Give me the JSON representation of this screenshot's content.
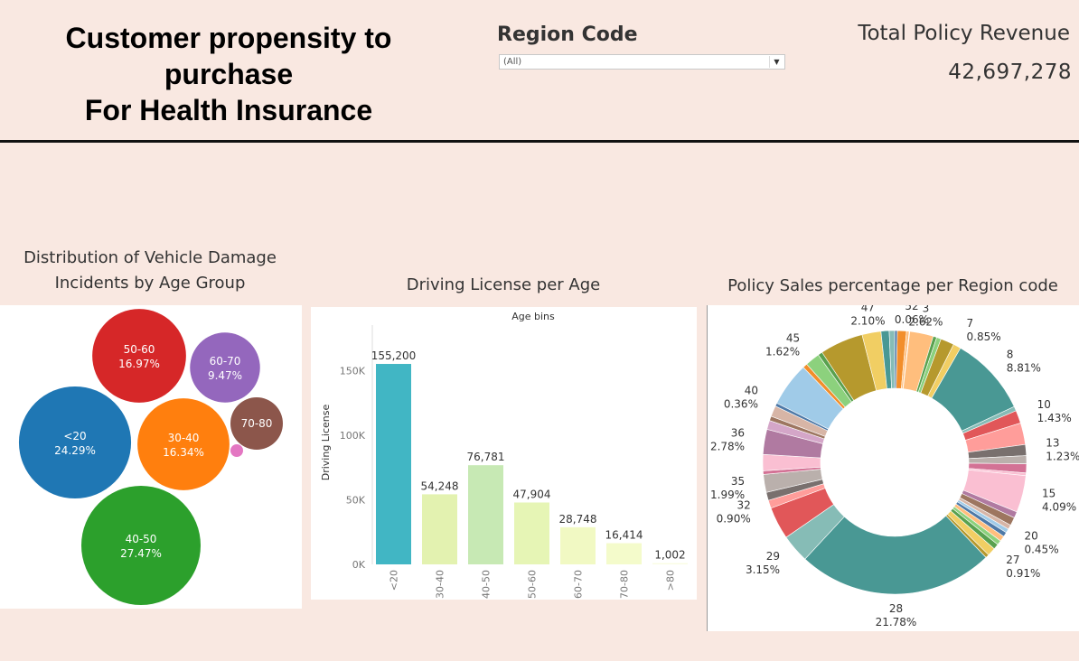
{
  "header": {
    "title_lines": [
      "Customer propensity to",
      "purchase",
      "For Health Insurance"
    ],
    "filter": {
      "label": "Region Code",
      "selected": "(All)"
    },
    "kpi": {
      "label": "Total Policy Revenue",
      "value": "42,697,278"
    }
  },
  "icons": {
    "dropdown": "chevron-down-icon"
  },
  "chart_data": [
    {
      "type": "bubble",
      "title": "Distribution of Vehicle Damage Incidents by Age Group",
      "title_lines": [
        "Distribution of Vehicle Damage",
        "Incidents by Age Group"
      ],
      "items": [
        {
          "label": "<20",
          "value": "24.29%",
          "pct": 24.29,
          "color": "#1f77b4"
        },
        {
          "label": "50-60",
          "value": "16.97%",
          "pct": 16.97,
          "color": "#d62728"
        },
        {
          "label": "60-70",
          "value": "9.47%",
          "pct": 9.47,
          "color": "#9467bd"
        },
        {
          "label": "30-40",
          "value": "16.34%",
          "pct": 16.34,
          "color": "#ff7f0e"
        },
        {
          "label": "70-80",
          "value": "",
          "pct": 5.3,
          "color": "#8c564b"
        },
        {
          "label": "40-50",
          "value": "27.47%",
          "pct": 27.47,
          "color": "#2ca02c"
        },
        {
          "label": "",
          "value": "",
          "pct": 0.2,
          "color": "#e377c2"
        }
      ]
    },
    {
      "type": "bar",
      "title": "Driving License per Age",
      "xlabel": "Age bins",
      "ylabel": "Driving License",
      "categories": [
        "<20",
        "30-40",
        "40-50",
        "50-60",
        "60-70",
        "70-80",
        ">80"
      ],
      "values": [
        155200,
        54248,
        76781,
        47904,
        28748,
        16414,
        1002
      ],
      "value_labels": [
        "155,200",
        "54,248",
        "76,781",
        "47,904",
        "28,748",
        "16,414",
        "1,002"
      ],
      "colors": [
        "#41b6c4",
        "#e3f2b0",
        "#c7e9b4",
        "#e6f5b5",
        "#f1f9c3",
        "#f4fbcb",
        "#fafde3"
      ],
      "yticks": [
        0,
        50000,
        100000,
        150000
      ],
      "ytick_labels": [
        "0K",
        "50K",
        "100K",
        "150K"
      ],
      "ylim": [
        0,
        165000
      ]
    },
    {
      "type": "pie",
      "title": "Policy Sales percentage per Region code",
      "slices": [
        {
          "value": 0.3,
          "color": "#4e79a7"
        },
        {
          "value": 1.0,
          "color": "#f28e2b"
        },
        {
          "value": 0.3,
          "color": "#ffbe7d"
        },
        {
          "value": 0.06,
          "color": "#59a14f",
          "label": "52",
          "pct_label": "0.06%"
        },
        {
          "value": 2.62,
          "color": "#ffbe7d",
          "label": "3",
          "pct_label": "2.62%"
        },
        {
          "value": 0.4,
          "color": "#59a14f"
        },
        {
          "value": 0.5,
          "color": "#8cd17d"
        },
        {
          "value": 1.5,
          "color": "#b6992d"
        },
        {
          "value": 0.85,
          "color": "#f1ce63",
          "label": "7",
          "pct_label": "0.85%"
        },
        {
          "value": 8.81,
          "color": "#499894",
          "label": "8",
          "pct_label": "8.81%"
        },
        {
          "value": 0.5,
          "color": "#86bcb6"
        },
        {
          "value": 1.43,
          "color": "#e15759",
          "label": "10",
          "pct_label": "1.43%"
        },
        {
          "value": 2.4,
          "color": "#ff9d9a"
        },
        {
          "value": 1.23,
          "color": "#79706e",
          "label": "13",
          "pct_label": "1.23%"
        },
        {
          "value": 0.9,
          "color": "#bab0ac"
        },
        {
          "value": 1.0,
          "color": "#d37295"
        },
        {
          "value": 0.3,
          "color": "#fabfd2"
        },
        {
          "value": 4.09,
          "color": "#fabfd2",
          "label": "15",
          "pct_label": "4.09%"
        },
        {
          "value": 0.7,
          "color": "#b07aa1"
        },
        {
          "value": 0.9,
          "color": "#9d7660"
        },
        {
          "value": 0.5,
          "color": "#d7b5a6"
        },
        {
          "value": 0.45,
          "color": "#a0cbe8",
          "label": "20",
          "pct_label": "0.45%"
        },
        {
          "value": 0.5,
          "color": "#4e79a7"
        },
        {
          "value": 0.6,
          "color": "#ffbe7d"
        },
        {
          "value": 0.5,
          "color": "#8cd17d"
        },
        {
          "value": 0.6,
          "color": "#59a14f"
        },
        {
          "value": 0.91,
          "color": "#f1ce63",
          "label": "27",
          "pct_label": "0.91%"
        },
        {
          "value": 0.4,
          "color": "#b6992d"
        },
        {
          "value": 21.78,
          "color": "#499894",
          "label": "28",
          "pct_label": "21.78%"
        },
        {
          "value": 3.15,
          "color": "#86bcb6",
          "label": "29",
          "pct_label": "3.15%"
        },
        {
          "value": 3.6,
          "color": "#e15759"
        },
        {
          "value": 0.9,
          "color": "#ff9d9a",
          "label": "32",
          "pct_label": "0.90%"
        },
        {
          "value": 0.9,
          "color": "#79706e"
        },
        {
          "value": 1.99,
          "color": "#bab0ac",
          "label": "35",
          "pct_label": "1.99%"
        },
        {
          "value": 0.4,
          "color": "#d37295"
        },
        {
          "value": 1.8,
          "color": "#fabfd2"
        },
        {
          "value": 2.78,
          "color": "#b07aa1",
          "label": "36",
          "pct_label": "2.78%"
        },
        {
          "value": 1.0,
          "color": "#d4a6c8"
        },
        {
          "value": 0.5,
          "color": "#9d7660"
        },
        {
          "value": 1.2,
          "color": "#d7b5a6"
        },
        {
          "value": 0.36,
          "color": "#4e79a7",
          "label": "40",
          "pct_label": "0.36%"
        },
        {
          "value": 4.9,
          "color": "#a0cbe8"
        },
        {
          "value": 0.5,
          "color": "#f28e2b"
        },
        {
          "value": 1.62,
          "color": "#8cd17d",
          "label": "45",
          "pct_label": "1.62%"
        },
        {
          "value": 0.5,
          "color": "#59a14f"
        },
        {
          "value": 4.8,
          "color": "#b6992d"
        },
        {
          "value": 2.1,
          "color": "#f1ce63",
          "label": "47",
          "pct_label": "2.10%"
        },
        {
          "value": 0.9,
          "color": "#499894"
        },
        {
          "value": 0.6,
          "color": "#86bcb6"
        }
      ]
    }
  ]
}
